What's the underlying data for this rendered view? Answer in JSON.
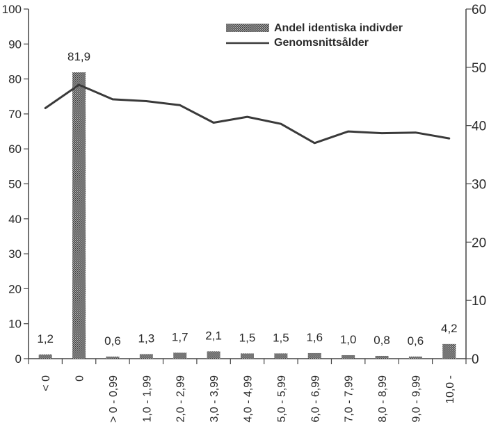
{
  "chart_data": {
    "type": "bar",
    "categories": [
      "< 0",
      "0",
      "> 0 - 0,99",
      "1,0 - 1,99",
      "2,0 - 2,99",
      "3,0 - 3,99",
      "4,0 - 4,99",
      "5,0 - 5,99",
      "6,0 - 6,99",
      "7,0 - 7,99",
      "8,0 - 8,99",
      "9,0 - 9,99",
      "10,0 -"
    ],
    "series": [
      {
        "name": "Andel identiska indivder",
        "type": "bar",
        "axis": "left",
        "values": [
          1.2,
          81.9,
          0.6,
          1.3,
          1.7,
          2.1,
          1.5,
          1.5,
          1.6,
          1.0,
          0.8,
          0.6,
          4.2
        ],
        "labels": [
          "1,2",
          "81,9",
          "0,6",
          "1,3",
          "1,7",
          "2,1",
          "1,5",
          "1,5",
          "1,6",
          "1,0",
          "0,8",
          "0,6",
          "4,2"
        ]
      },
      {
        "name": "Genomsnittsålder",
        "type": "line",
        "axis": "right",
        "values": [
          43,
          47,
          44.5,
          44.2,
          43.5,
          40.5,
          41.5,
          40.3,
          37,
          39,
          38.7,
          38.8,
          37.8
        ]
      }
    ],
    "y_left": {
      "lim": [
        0,
        100
      ],
      "ticks": [
        0,
        10,
        20,
        30,
        40,
        50,
        60,
        70,
        80,
        90,
        100
      ]
    },
    "y_right": {
      "lim": [
        0,
        60
      ],
      "ticks": [
        0,
        10,
        20,
        30,
        40,
        50,
        60
      ]
    },
    "legend_position": "top-right",
    "colors": {
      "bar": "#8a8a8a",
      "line": "#3a3a3a",
      "axis": "#444444"
    },
    "grid": false
  }
}
